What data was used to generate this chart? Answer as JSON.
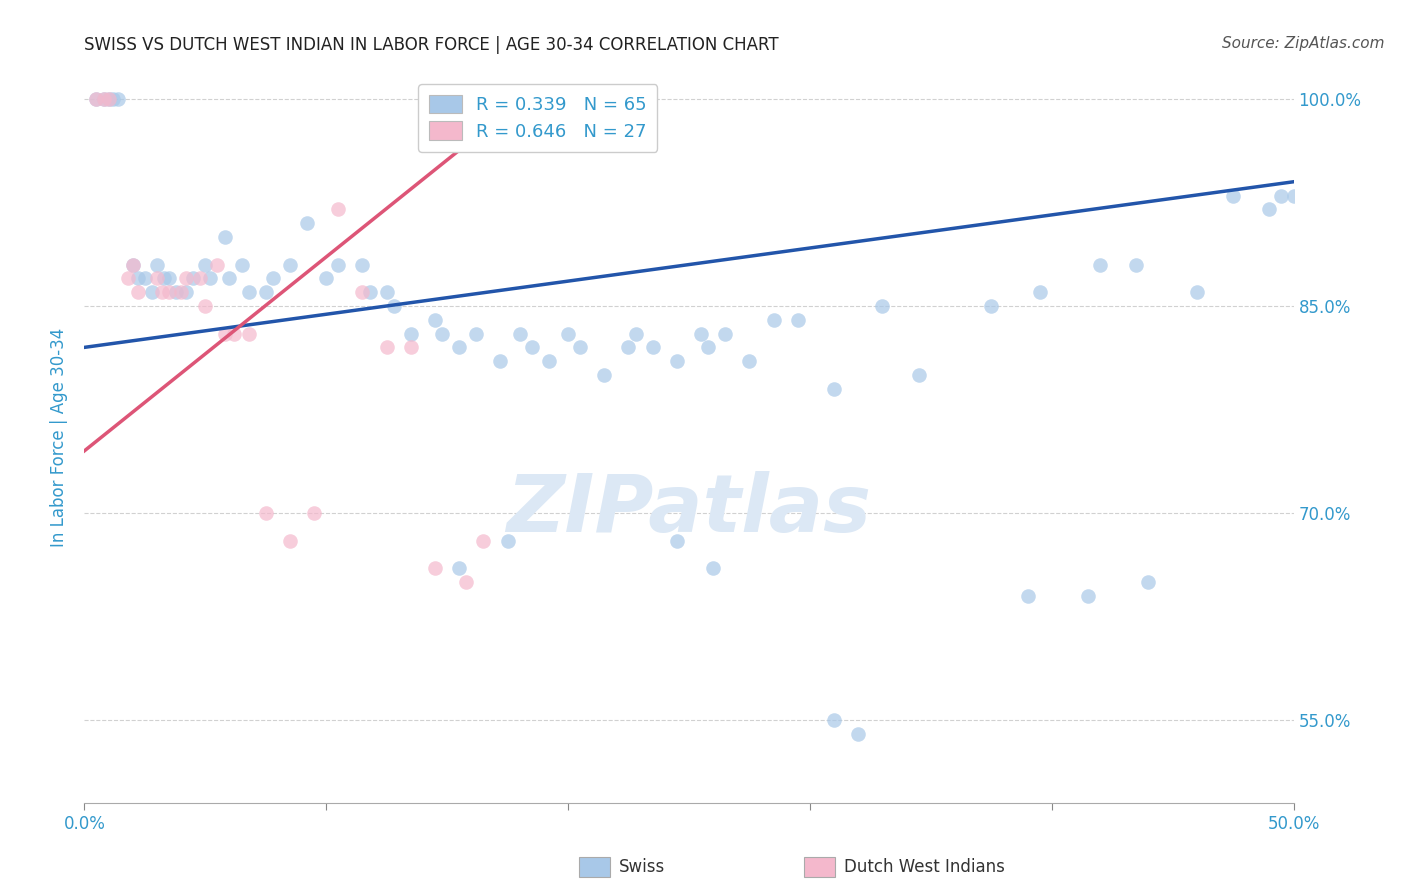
{
  "title": "SWISS VS DUTCH WEST INDIAN IN LABOR FORCE | AGE 30-34 CORRELATION CHART",
  "source": "Source: ZipAtlas.com",
  "ylabel": "In Labor Force | Age 30-34",
  "xlim": [
    0.0,
    0.5
  ],
  "ylim": [
    0.49,
    1.02
  ],
  "yticks": [
    1.0,
    0.85,
    0.7,
    0.55
  ],
  "ytick_labels": [
    "100.0%",
    "85.0%",
    "70.0%",
    "55.0%"
  ],
  "xticks": [
    0.0,
    0.1,
    0.2,
    0.3,
    0.4,
    0.5
  ],
  "xtick_labels": [
    "0.0%",
    "",
    "",
    "",
    "",
    "50.0%"
  ],
  "legend_blue_r": "R = 0.339",
  "legend_blue_n": "N = 65",
  "legend_pink_r": "R = 0.646",
  "legend_pink_n": "N = 27",
  "legend_swiss": "Swiss",
  "legend_dutch": "Dutch West Indians",
  "blue_scatter_x": [
    0.005,
    0.008,
    0.01,
    0.012,
    0.014,
    0.02,
    0.022,
    0.025,
    0.028,
    0.03,
    0.033,
    0.035,
    0.038,
    0.042,
    0.045,
    0.05,
    0.052,
    0.058,
    0.06,
    0.065,
    0.068,
    0.075,
    0.078,
    0.085,
    0.092,
    0.1,
    0.105,
    0.115,
    0.118,
    0.125,
    0.128,
    0.135,
    0.145,
    0.148,
    0.155,
    0.162,
    0.172,
    0.18,
    0.185,
    0.192,
    0.2,
    0.205,
    0.215,
    0.225,
    0.228,
    0.235,
    0.245,
    0.255,
    0.258,
    0.265,
    0.275,
    0.285,
    0.295,
    0.31,
    0.33,
    0.345,
    0.375,
    0.395,
    0.42,
    0.435,
    0.46,
    0.475,
    0.49,
    0.495,
    0.5
  ],
  "blue_scatter_y": [
    1.0,
    1.0,
    1.0,
    1.0,
    1.0,
    0.88,
    0.87,
    0.87,
    0.86,
    0.88,
    0.87,
    0.87,
    0.86,
    0.86,
    0.87,
    0.88,
    0.87,
    0.9,
    0.87,
    0.88,
    0.86,
    0.86,
    0.87,
    0.88,
    0.91,
    0.87,
    0.88,
    0.88,
    0.86,
    0.86,
    0.85,
    0.83,
    0.84,
    0.83,
    0.82,
    0.83,
    0.81,
    0.83,
    0.82,
    0.81,
    0.83,
    0.82,
    0.8,
    0.82,
    0.83,
    0.82,
    0.81,
    0.83,
    0.82,
    0.83,
    0.81,
    0.84,
    0.84,
    0.79,
    0.85,
    0.8,
    0.85,
    0.86,
    0.88,
    0.88,
    0.86,
    0.93,
    0.92,
    0.93,
    0.93
  ],
  "blue_scatter_x2": [
    0.155,
    0.175,
    0.245,
    0.26,
    0.31,
    0.32,
    0.39,
    0.415,
    0.44
  ],
  "blue_scatter_y2": [
    0.66,
    0.68,
    0.68,
    0.66,
    0.55,
    0.54,
    0.64,
    0.64,
    0.65
  ],
  "pink_scatter_x": [
    0.005,
    0.008,
    0.01,
    0.018,
    0.02,
    0.022,
    0.03,
    0.032,
    0.035,
    0.04,
    0.042,
    0.048,
    0.05,
    0.055,
    0.058,
    0.062,
    0.068,
    0.075,
    0.085,
    0.095,
    0.105,
    0.115,
    0.125,
    0.135,
    0.145,
    0.158,
    0.165
  ],
  "pink_scatter_y": [
    1.0,
    1.0,
    1.0,
    0.87,
    0.88,
    0.86,
    0.87,
    0.86,
    0.86,
    0.86,
    0.87,
    0.87,
    0.85,
    0.88,
    0.83,
    0.83,
    0.83,
    0.7,
    0.68,
    0.7,
    0.92,
    0.86,
    0.82,
    0.82,
    0.66,
    0.65,
    0.68
  ],
  "blue_line_x": [
    0.0,
    0.5
  ],
  "blue_line_y": [
    0.82,
    0.94
  ],
  "pink_line_x": [
    0.0,
    0.185
  ],
  "pink_line_y": [
    0.745,
    1.005
  ],
  "scatter_size": 110,
  "blue_color": "#a8c8e8",
  "pink_color": "#f4b8cc",
  "blue_line_color": "#2255aa",
  "pink_line_color": "#dd5577",
  "watermark_text": "ZIPatlas",
  "watermark_color": "#dce8f5",
  "background_color": "#ffffff",
  "grid_color": "#cccccc",
  "title_color": "#222222",
  "axis_label_color": "#3399cc",
  "tick_label_color": "#3399cc",
  "right_tick_color": "#3399cc",
  "title_fontsize": 12,
  "source_fontsize": 11
}
